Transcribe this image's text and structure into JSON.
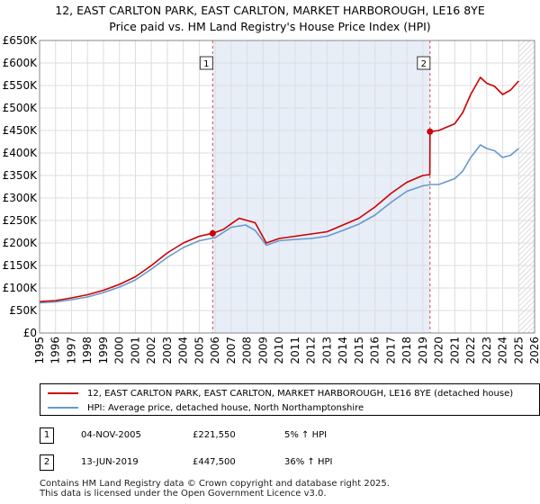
{
  "title_line1": "12, EAST CARLTON PARK, EAST CARLTON, MARKET HARBOROUGH, LE16 8YE",
  "title_line2": "Price paid vs. HM Land Registry's House Price Index (HPI)",
  "legend": {
    "property_label": "12, EAST CARLTON PARK, EAST CARLTON, MARKET HARBOROUGH, LE16 8YE (detached house)",
    "hpi_label": "HPI: Average price, detached house, North Northamptonshire"
  },
  "transactions": [
    {
      "num": "1",
      "date": "04-NOV-2005",
      "price": "£221,550",
      "hpi": "5% ↑ HPI"
    },
    {
      "num": "2",
      "date": "13-JUN-2019",
      "price": "£447,500",
      "hpi": "36% ↑ HPI"
    }
  ],
  "footer_line1": "Contains HM Land Registry data © Crown copyright and database right 2025.",
  "footer_line2": "This data is licensed under the Open Government Licence v3.0.",
  "colors": {
    "property": "#cc0000",
    "hpi": "#6699cc",
    "shade": "#e8eef8",
    "grid": "#dddddd"
  },
  "chart_data": {
    "type": "line",
    "xlabel": "",
    "ylabel": "",
    "xlim": [
      1995,
      2026
    ],
    "ylim": [
      0,
      650000
    ],
    "yticks": [
      0,
      50000,
      100000,
      150000,
      200000,
      250000,
      300000,
      350000,
      400000,
      450000,
      500000,
      550000,
      600000,
      650000
    ],
    "ytick_labels": [
      "£0",
      "£50K",
      "£100K",
      "£150K",
      "£200K",
      "£250K",
      "£300K",
      "£350K",
      "£400K",
      "£450K",
      "£500K",
      "£550K",
      "£600K",
      "£650K"
    ],
    "xticks": [
      1995,
      1996,
      1997,
      1998,
      1999,
      2000,
      2001,
      2002,
      2003,
      2004,
      2005,
      2006,
      2007,
      2008,
      2009,
      2010,
      2011,
      2012,
      2013,
      2014,
      2015,
      2016,
      2017,
      2018,
      2019,
      2020,
      2021,
      2022,
      2023,
      2024,
      2025,
      2026
    ],
    "xtick_labels": [
      "1995",
      "1996",
      "1997",
      "1998",
      "1999",
      "2000",
      "2001",
      "2002",
      "2003",
      "2004",
      "2005",
      "2006",
      "2007",
      "2008",
      "2009",
      "2010",
      "2011",
      "2012",
      "2013",
      "2014",
      "2015",
      "2016",
      "2017",
      "2018",
      "2019",
      "2020",
      "2021",
      "2022",
      "2023",
      "2024",
      "2025",
      "2026"
    ],
    "grid": true,
    "shaded_between": [
      2005.84,
      2019.45
    ],
    "future_hatch_from": 2025.0,
    "series": [
      {
        "name": "12, EAST CARLTON PARK, EAST CARLTON, MARKET HARBOROUGH, LE16 8YE (detached house)",
        "x": [
          1995.0,
          1996.0,
          1997.0,
          1998.0,
          1999.0,
          2000.0,
          2001.0,
          2002.0,
          2003.0,
          2004.0,
          2005.0,
          2005.84,
          2006.5,
          2007.5,
          2008.5,
          2009.2,
          2010.0,
          2011.0,
          2012.0,
          2013.0,
          2014.0,
          2015.0,
          2016.0,
          2017.0,
          2018.0,
          2019.0,
          2019.44,
          2019.45,
          2020.0,
          2021.0,
          2021.5,
          2022.0,
          2022.6,
          2023.0,
          2023.5,
          2024.0,
          2024.5,
          2025.0
        ],
        "y": [
          70000,
          72000,
          78000,
          85000,
          95000,
          108000,
          125000,
          150000,
          178000,
          200000,
          215000,
          221550,
          230000,
          255000,
          245000,
          200000,
          210000,
          215000,
          220000,
          225000,
          240000,
          255000,
          280000,
          310000,
          335000,
          350000,
          352000,
          447500,
          450000,
          465000,
          490000,
          530000,
          568000,
          555000,
          548000,
          530000,
          540000,
          560000
        ]
      },
      {
        "name": "HPI: Average price, detached house, North Northamptonshire",
        "x": [
          1995.0,
          1996.0,
          1997.0,
          1998.0,
          1999.0,
          2000.0,
          2001.0,
          2002.0,
          2003.0,
          2004.0,
          2005.0,
          2006.0,
          2007.0,
          2007.9,
          2008.5,
          2009.2,
          2010.0,
          2011.0,
          2012.0,
          2013.0,
          2014.0,
          2015.0,
          2016.0,
          2017.0,
          2018.0,
          2019.0,
          2019.5,
          2020.0,
          2021.0,
          2021.5,
          2022.0,
          2022.6,
          2023.0,
          2023.5,
          2024.0,
          2024.5,
          2025.0
        ],
        "y": [
          67000,
          69000,
          74000,
          80000,
          90000,
          102000,
          118000,
          142000,
          168000,
          190000,
          205000,
          212000,
          235000,
          240000,
          228000,
          195000,
          205000,
          208000,
          210000,
          215000,
          228000,
          242000,
          262000,
          290000,
          315000,
          327000,
          330000,
          330000,
          343000,
          360000,
          390000,
          418000,
          410000,
          405000,
          390000,
          395000,
          410000
        ]
      }
    ],
    "markers": [
      {
        "label": "1",
        "x": 2005.84,
        "y": 221550
      },
      {
        "label": "2",
        "x": 2019.45,
        "y": 447500
      }
    ]
  }
}
